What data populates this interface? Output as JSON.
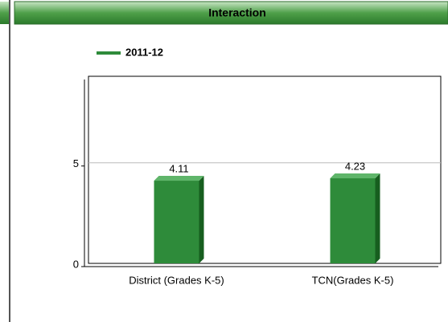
{
  "header": {
    "title": "Interaction"
  },
  "chart_data": {
    "type": "bar",
    "categories": [
      "District (Grades K-5)",
      "TCN(Grades K-5)"
    ],
    "series": [
      {
        "name": "2011-12",
        "color": "#2e8b3a",
        "values": [
          4.11,
          4.23
        ]
      }
    ],
    "ylim": [
      0,
      9.3
    ],
    "yticks": [
      0,
      5
    ],
    "grid": true
  }
}
